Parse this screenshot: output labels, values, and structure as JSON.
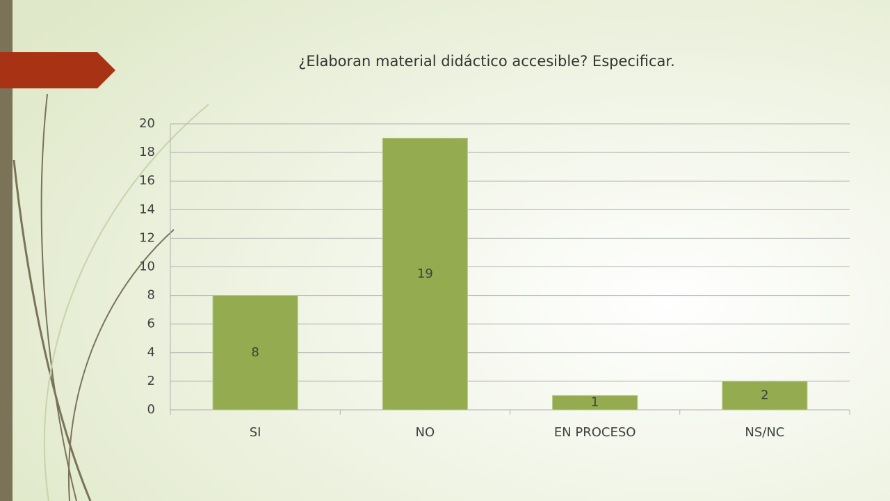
{
  "chart_data": {
    "type": "bar",
    "title": "¿Elaboran material didáctico accesible? Especificar.",
    "categories": [
      "SI",
      "NO",
      "EN PROCESO",
      "NS/NC"
    ],
    "values": [
      8,
      19,
      1,
      2
    ],
    "color": "#94ab4f",
    "ylim": [
      0,
      20
    ],
    "yticks": [
      0,
      2,
      4,
      6,
      8,
      10,
      12,
      14,
      16,
      18,
      20
    ],
    "grid": true
  }
}
